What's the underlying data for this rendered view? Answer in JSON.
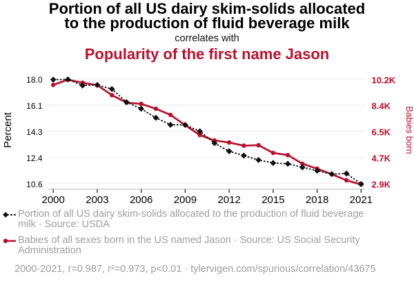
{
  "header": {
    "title_line1": "Portion of all US dairy skim-solids allocated",
    "title_line2": "to the production of fluid beverage milk",
    "connector": "correlates with",
    "subtitle": "Popularity of the first name Jason"
  },
  "colors": {
    "accent_red": "#b9102c",
    "series_black": "#101010",
    "legend_gray": "#9e9e9e",
    "grid_gray": "#e9e9e9",
    "axis_gray": "#b5b5b5"
  },
  "chart_data": {
    "type": "line",
    "x": [
      2000,
      2001,
      2002,
      2003,
      2004,
      2005,
      2006,
      2007,
      2008,
      2009,
      2010,
      2011,
      2012,
      2013,
      2014,
      2015,
      2016,
      2017,
      2018,
      2019,
      2020,
      2021
    ],
    "x_tick_labels": [
      "2000",
      "2003",
      "2006",
      "2009",
      "2012",
      "2015",
      "2018",
      "2021"
    ],
    "x_tick_values": [
      2000,
      2003,
      2006,
      2009,
      2012,
      2015,
      2018,
      2021
    ],
    "left_axis": {
      "label": "Percent",
      "tick_labels": [
        "18.0",
        "16.1",
        "14.3",
        "12.4",
        "10.6"
      ],
      "tick_values": [
        18.0,
        16.15,
        14.3,
        12.45,
        10.6
      ]
    },
    "right_axis": {
      "label": "Babies born",
      "tick_labels": [
        "10.2K",
        "8.4K",
        "6.5K",
        "4.7K",
        "2.9K"
      ],
      "tick_values": [
        10200,
        8375,
        6550,
        4725,
        2900
      ]
    },
    "series": [
      {
        "name": "Portion of all US dairy skim-solids allocated to the production of fluid beverage milk",
        "axis": "left",
        "style": "dotted-diamond",
        "values": [
          17.97,
          17.98,
          17.55,
          17.59,
          17.3,
          16.37,
          15.9,
          15.26,
          14.76,
          14.76,
          14.3,
          13.46,
          12.89,
          12.58,
          12.27,
          12.06,
          12.0,
          11.75,
          11.51,
          11.27,
          11.31,
          10.57
        ]
      },
      {
        "name": "Babies of all sexes born in the US named Jason",
        "axis": "right",
        "style": "solid-circle",
        "values": [
          9800,
          10160,
          9950,
          9780,
          9080,
          8560,
          8470,
          8130,
          7700,
          6980,
          6290,
          5910,
          5770,
          5550,
          5580,
          5040,
          4890,
          4280,
          3940,
          3550,
          3130,
          2830
        ]
      }
    ]
  },
  "legend": {
    "items": [
      {
        "label": "Portion of all US dairy skim-solids allocated to the production of fluid beverage milk · Source: USDA",
        "marker": "black-diamond-dotted"
      },
      {
        "label": "Babies of all sexes born in the US named Jason · Source: US Social Security Administration",
        "marker": "red-circle-line"
      }
    ]
  },
  "footer": {
    "text": "2000-2021, r=0.987, r²=0.973, p<0.01 · tylervigen.com/spurious/correlation/43675"
  }
}
